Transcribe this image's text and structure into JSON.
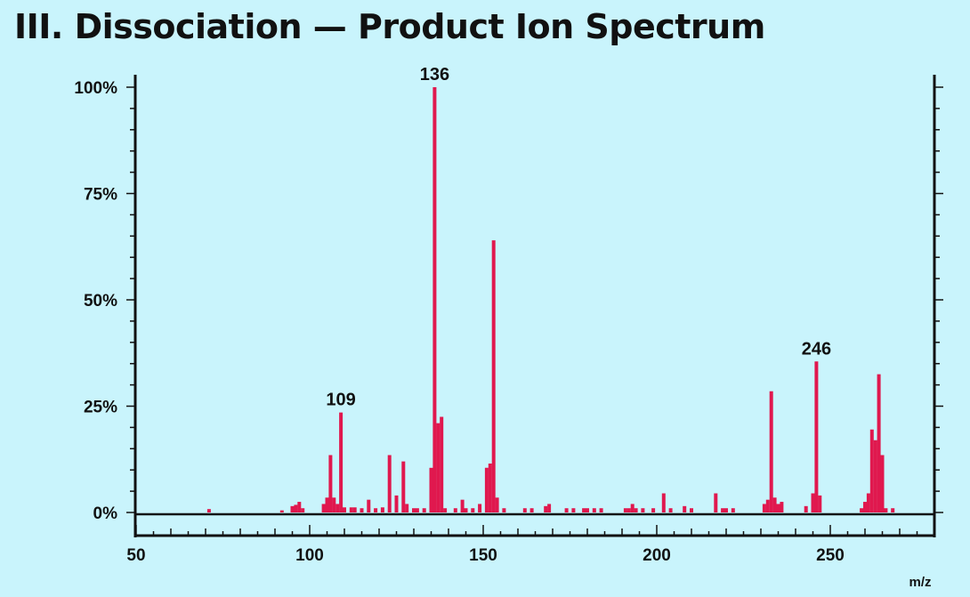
{
  "title": "III. Dissociation — Product Ion Spectrum",
  "chart_data": {
    "type": "bar",
    "xlabel": "m/z",
    "ylabel": "",
    "xlim": [
      50,
      280
    ],
    "ylim": [
      0,
      100
    ],
    "x_ticks": [
      "50",
      "100",
      "150",
      "200",
      "250"
    ],
    "y_ticks": [
      "0%",
      "25%",
      "50%",
      "75%",
      "100%"
    ],
    "annotations": [
      {
        "x": 109,
        "text": "109"
      },
      {
        "x": 136,
        "text": "136"
      },
      {
        "x": 246,
        "text": "246"
      }
    ],
    "colors": {
      "peaks": "#e0184e",
      "background": "#c9f4fc",
      "axes": "#111111"
    },
    "x": [
      71,
      92,
      95,
      96,
      97,
      98,
      104,
      105,
      106,
      107,
      108,
      109,
      110,
      112,
      113,
      115,
      117,
      119,
      121,
      123,
      125,
      127,
      128,
      130,
      131,
      133,
      135,
      136,
      137,
      138,
      139,
      142,
      144,
      145,
      147,
      149,
      151,
      152,
      153,
      154,
      156,
      162,
      164,
      168,
      169,
      174,
      176,
      179,
      180,
      182,
      184,
      191,
      192,
      193,
      194,
      196,
      199,
      202,
      204,
      208,
      210,
      217,
      219,
      220,
      222,
      231,
      232,
      233,
      234,
      235,
      236,
      243,
      245,
      246,
      247,
      259,
      260,
      261,
      262,
      263,
      264,
      265,
      266,
      268
    ],
    "values": [
      0.8,
      0.5,
      1.5,
      1.8,
      2.5,
      1.0,
      2.0,
      3.5,
      13.5,
      3.5,
      2.0,
      23.5,
      1.2,
      1.2,
      1.2,
      1.0,
      3.0,
      1.0,
      1.2,
      13.5,
      4.0,
      12.0,
      2.0,
      1.0,
      1.0,
      1.0,
      10.5,
      100.0,
      21.0,
      22.5,
      1.0,
      1.0,
      3.0,
      1.0,
      1.0,
      2.0,
      10.5,
      11.5,
      64.0,
      3.5,
      1.0,
      1.0,
      1.0,
      1.5,
      2.0,
      1.0,
      1.0,
      1.0,
      1.0,
      1.0,
      1.0,
      1.0,
      1.0,
      2.0,
      1.0,
      1.0,
      1.0,
      4.5,
      1.0,
      1.5,
      1.0,
      4.5,
      1.0,
      1.0,
      1.0,
      2.0,
      3.0,
      28.5,
      3.5,
      2.0,
      2.5,
      1.5,
      4.5,
      35.5,
      4.0,
      1.0,
      2.5,
      4.5,
      19.5,
      17.0,
      32.5,
      13.5,
      1.0,
      1.0
    ]
  }
}
